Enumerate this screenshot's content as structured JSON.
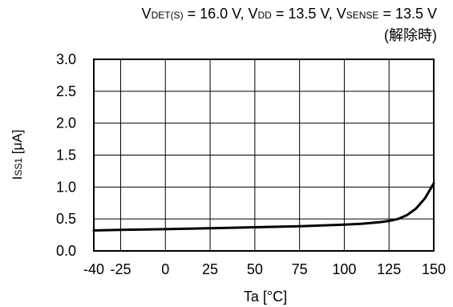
{
  "chart_data": {
    "type": "line",
    "title": {
      "v_det": "V",
      "v_det_sub": "DET(S)",
      "v_det_val": " = 16.0 V, ",
      "v_dd": "V",
      "v_dd_sub": "DD",
      "v_dd_val": " = 13.5 V, ",
      "v_sense": "V",
      "v_sense_sub": "SENSE",
      "v_sense_val": " = 13.5 V"
    },
    "subtitle": "(解除時)",
    "xlabel": "Ta [°C]",
    "ylabel": {
      "main": "I",
      "sub": "SS1",
      "unit": " [μA]"
    },
    "xlim": [
      -40,
      150
    ],
    "ylim": [
      0,
      3.0
    ],
    "xticks": [
      "-40",
      "-25",
      "0",
      "25",
      "50",
      "75",
      "100",
      "125",
      "150"
    ],
    "xtick_values": [
      -40,
      -25,
      0,
      25,
      50,
      75,
      100,
      125,
      150
    ],
    "yticks": [
      "3.0",
      "2.5",
      "2.0",
      "1.5",
      "1.0",
      "0.5",
      "0.0"
    ],
    "ytick_values": [
      3.0,
      2.5,
      2.0,
      1.5,
      1.0,
      0.5,
      0.0
    ],
    "grid": true,
    "series": [
      {
        "color": "#000000",
        "x": [
          -40,
          -25,
          0,
          25,
          50,
          75,
          100,
          110,
          120,
          125,
          130,
          135,
          140,
          145,
          148,
          150
        ],
        "y": [
          0.32,
          0.33,
          0.34,
          0.355,
          0.37,
          0.385,
          0.41,
          0.425,
          0.45,
          0.47,
          0.5,
          0.56,
          0.66,
          0.82,
          0.96,
          1.06
        ]
      }
    ]
  }
}
